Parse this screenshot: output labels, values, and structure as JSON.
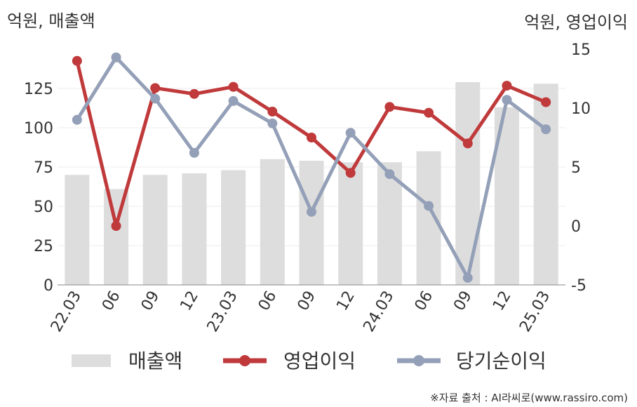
{
  "chart_data": {
    "type": "bar+line",
    "categories": [
      "22.03",
      "06",
      "09",
      "12",
      "23.03",
      "06",
      "09",
      "12",
      "24.03",
      "06",
      "09",
      "12",
      "25.03"
    ],
    "left_axis": {
      "unit_label": "억원, 매출액",
      "ticks": [
        "0",
        "25",
        "50",
        "75",
        "100",
        "125"
      ],
      "ylim": [
        0,
        150
      ]
    },
    "right_axis": {
      "unit_label": "억원, 영업이익",
      "ticks": [
        "-5",
        "0",
        "5",
        "10",
        "15"
      ],
      "ylim": [
        -5,
        15
      ]
    },
    "series": [
      {
        "name": "매출액",
        "kind": "bar",
        "axis": "left",
        "color": "#dddddd",
        "values": [
          70,
          61,
          70,
          71,
          73,
          80,
          79,
          78,
          78,
          85,
          129,
          113,
          128
        ]
      },
      {
        "name": "영업이익",
        "kind": "line",
        "axis": "right",
        "color": "#c0393b",
        "values": [
          14.0,
          0.0,
          11.7,
          11.2,
          11.8,
          9.7,
          7.5,
          4.5,
          10.1,
          9.6,
          7.0,
          11.9,
          10.5
        ]
      },
      {
        "name": "당기순이익",
        "kind": "line",
        "axis": "right",
        "color": "#94a0b8",
        "values": [
          9.0,
          14.3,
          10.8,
          6.2,
          10.6,
          8.7,
          1.2,
          7.9,
          4.4,
          1.7,
          -4.4,
          10.7,
          8.2
        ]
      }
    ],
    "grid": true,
    "legend_position": "bottom"
  },
  "source_text": "※자료 출처 : AI라씨로(www.rassiro.com)"
}
